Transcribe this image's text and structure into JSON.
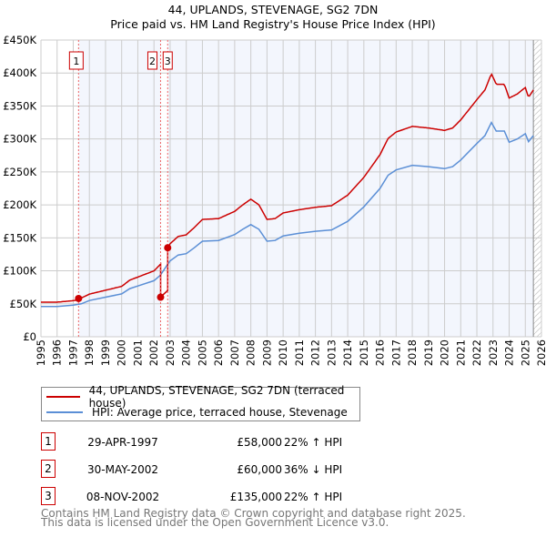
{
  "chart_data": {
    "type": "line",
    "title": "44, UPLANDS, STEVENAGE, SG2 7DN",
    "subtitle": "Price paid vs. HM Land Registry's House Price Index (HPI)",
    "xlim": [
      1995,
      2026
    ],
    "ylim": [
      0,
      450000
    ],
    "y_ticks": [
      0,
      50000,
      100000,
      150000,
      200000,
      250000,
      300000,
      350000,
      400000,
      450000
    ],
    "y_tick_labels": [
      "£0",
      "£50K",
      "£100K",
      "£150K",
      "£200K",
      "£250K",
      "£300K",
      "£350K",
      "£400K",
      "£450K"
    ],
    "x_tick_labels": [
      "1995",
      "1996",
      "1997",
      "1998",
      "1999",
      "2000",
      "2001",
      "2002",
      "2003",
      "2004",
      "2005",
      "2006",
      "2007",
      "2008",
      "2009",
      "2010",
      "2011",
      "2012",
      "2013",
      "2014",
      "2015",
      "2016",
      "2017",
      "2018",
      "2019",
      "2020",
      "2021",
      "2022",
      "2023",
      "2024",
      "2025",
      "2026"
    ],
    "grid": true,
    "series": [
      {
        "name": "44, UPLANDS, STEVENAGE, SG2 7DN (terraced house)",
        "color": "#cc0000",
        "derived_from": "hpi_and_sales"
      },
      {
        "name": "HPI: Average price, terraced house, Stevenage",
        "color": "#5b8fd6",
        "x": [
          1995,
          1996,
          1997,
          1997.5,
          1998,
          1999,
          2000,
          2000.5,
          2001,
          2002,
          2002.4,
          2002.85,
          2003,
          2003.5,
          2004,
          2004.5,
          2005,
          2006,
          2007,
          2007.5,
          2008,
          2008.5,
          2009,
          2009.5,
          2010,
          2011,
          2012,
          2013,
          2014,
          2015,
          2016,
          2016.5,
          2017,
          2018,
          2019,
          2020,
          2020.5,
          2021,
          2022,
          2022.5,
          2022.9,
          2023.2,
          2023.7,
          2024,
          2024.5,
          2025,
          2025.2,
          2025.5
        ],
        "values": [
          46000,
          46000,
          48000,
          50000,
          55000,
          60000,
          65000,
          73000,
          77000,
          85000,
          93500,
          110000,
          115000,
          124000,
          126000,
          135000,
          145000,
          146000,
          155000,
          163000,
          170000,
          163000,
          145000,
          146000,
          153000,
          157000,
          160000,
          162000,
          175000,
          197000,
          225000,
          245000,
          253000,
          260000,
          258000,
          255000,
          258000,
          268000,
          293000,
          305000,
          325000,
          312000,
          312000,
          295000,
          300000,
          308000,
          296000,
          305000
        ]
      }
    ],
    "sales": [
      {
        "id": "1",
        "date": "29-APR-1997",
        "x": 1997.33,
        "price": 58000,
        "price_label": "£58,000",
        "hpi_diff": "22% ↑ HPI"
      },
      {
        "id": "2",
        "date": "30-MAY-2002",
        "x": 2002.41,
        "price": 60000,
        "price_label": "£60,000",
        "hpi_diff": "36% ↓ HPI"
      },
      {
        "id": "3",
        "date": "08-NOV-2002",
        "x": 2002.85,
        "price": 135000,
        "price_label": "£135,000",
        "hpi_diff": "22% ↑ HPI"
      }
    ],
    "legend_placement": "bottom"
  },
  "footer": {
    "line1": "Contains HM Land Registry data © Crown copyright and database right 2025.",
    "line2": "This data is licensed under the Open Government Licence v3.0."
  }
}
